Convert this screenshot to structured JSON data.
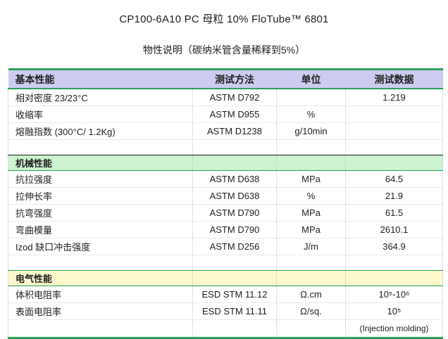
{
  "page": {
    "title": "CP100-6A10 PC 母粒 10% FloTube™ 6801",
    "subtitle": "物性说明（碳纳米管含量稀释到5%）"
  },
  "table": {
    "header": {
      "property": "基本性能",
      "method": "测试方法",
      "unit": "单位",
      "value": "测试数据"
    },
    "basic": {
      "rows": [
        {
          "property": "相对密度 23/23°C",
          "method": "ASTM D792",
          "unit": "",
          "value": "1.219"
        },
        {
          "property": "收缩率",
          "method": "ASTM D955",
          "unit": "%",
          "value": ""
        },
        {
          "property": "熔融指数 (300°C/ 1.2Kg)",
          "method": "ASTM D1238",
          "unit": "g/10min",
          "value": ""
        }
      ]
    },
    "mechanical": {
      "title": "机械性能",
      "rows": [
        {
          "property": "抗拉强度",
          "method": "ASTM D638",
          "unit": "MPa",
          "value": "64.5"
        },
        {
          "property": "拉伸长率",
          "method": "ASTM D638",
          "unit": "%",
          "value": "21.9"
        },
        {
          "property": "抗弯强度",
          "method": "ASTM D790",
          "unit": "MPa",
          "value": "61.5"
        },
        {
          "property": "弯曲模量",
          "method": "ASTM D790",
          "unit": "MPa",
          "value": "2610.1"
        },
        {
          "property": "Izod 缺口冲击强度",
          "method": "ASTM D256",
          "unit": "J/m",
          "value": "364.9"
        }
      ]
    },
    "electrical": {
      "title": "电气性能",
      "rows": [
        {
          "property": "体积电阻率",
          "method": "ESD STM 11.12",
          "unit": "Ω.cm",
          "value": "10⁵-10⁶"
        },
        {
          "property": "表面电阻率",
          "method": "ESD STM 11.11",
          "unit": "Ω/sq.",
          "value": "10⁵"
        },
        {
          "property": "",
          "method": "",
          "unit": "",
          "value": "(Injection molding)"
        }
      ]
    }
  },
  "colors": {
    "header_bg": "#cdccf0",
    "mechanical_bg": "#ccf2cf",
    "electrical_bg": "#fbf8cd",
    "accent_green": "#2ca05a"
  }
}
